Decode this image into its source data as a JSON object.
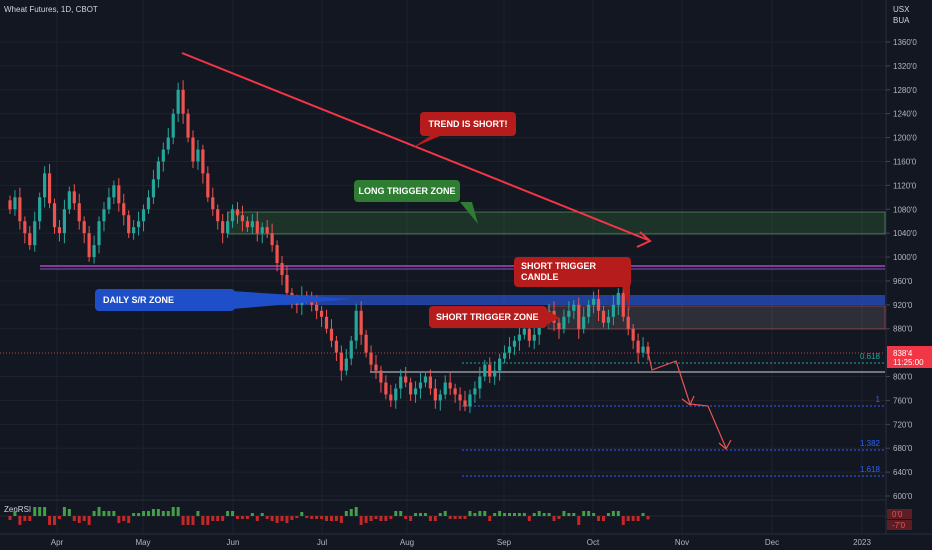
{
  "header": {
    "symbol": "Wheat Futures, 1D, CBOT"
  },
  "axis_header": {
    "currency": "USX",
    "label": "BUA"
  },
  "price_tag": {
    "value": "838'4",
    "time": "11:25:00"
  },
  "indicator": {
    "name": "ZenRSI",
    "value_top": "0'0",
    "value_bottom": "-7'0"
  },
  "annotations": {
    "trend": "TREND IS SHORT!",
    "long_zone": "LONG TRIGGER ZONE",
    "short_candle_line1": "SHORT TRIGGER",
    "short_candle_line2": "CANDLE",
    "daily_zone": "DAILY S/R ZONE",
    "short_zone": "SHORT TRIGGER ZONE"
  },
  "fib_labels": {
    "f0618": "0.618",
    "f1": "1",
    "f1382": "1.382",
    "f1618": "1.618"
  },
  "colors": {
    "up": "#26a69a",
    "down": "#ef5350",
    "background": "#131722",
    "green_label": "#2e7d32",
    "red_label": "#b71c1c",
    "blue_label": "#1e4fc9",
    "fib": "#2962ff",
    "trend_line": "#f23645"
  },
  "chart_data": {
    "type": "candlestick",
    "title": "Wheat Futures, 1D, CBOT",
    "y_ticks": [
      "1360'0",
      "1320'0",
      "1280'0",
      "1240'0",
      "1200'0",
      "1160'0",
      "1120'0",
      "1080'0",
      "1040'0",
      "1000'0",
      "960'0",
      "920'0",
      "880'0",
      "800'0",
      "760'0",
      "720'0",
      "680'0",
      "640'0",
      "600'0"
    ],
    "x_ticks": [
      "Apr",
      "May",
      "Jun",
      "Jul",
      "Aug",
      "Sep",
      "Oct",
      "Nov",
      "Dec",
      "2023"
    ],
    "ylim": [
      600,
      1380
    ],
    "closes": [
      1080,
      1100,
      1060,
      1040,
      1020,
      1060,
      1100,
      1140,
      1090,
      1050,
      1040,
      1080,
      1110,
      1090,
      1060,
      1040,
      1000,
      1020,
      1060,
      1080,
      1100,
      1120,
      1090,
      1070,
      1040,
      1050,
      1060,
      1080,
      1100,
      1130,
      1160,
      1180,
      1200,
      1240,
      1280,
      1240,
      1200,
      1160,
      1180,
      1140,
      1100,
      1080,
      1060,
      1040,
      1060,
      1080,
      1070,
      1060,
      1050,
      1060,
      1040,
      1050,
      1040,
      1020,
      990,
      970,
      940,
      925,
      920,
      935,
      930,
      920,
      910,
      900,
      880,
      860,
      840,
      810,
      830,
      860,
      910,
      870,
      840,
      820,
      810,
      790,
      770,
      760,
      780,
      800,
      790,
      770,
      780,
      790,
      800,
      780,
      760,
      770,
      790,
      780,
      770,
      760,
      750,
      770,
      780,
      800,
      820,
      800,
      810,
      830,
      840,
      850,
      860,
      870,
      880,
      860,
      870,
      890,
      900,
      910,
      890,
      880,
      900,
      910,
      920,
      880,
      900,
      920,
      930,
      910,
      890,
      900,
      920,
      940,
      900,
      880,
      860,
      840,
      850,
      838
    ]
  }
}
